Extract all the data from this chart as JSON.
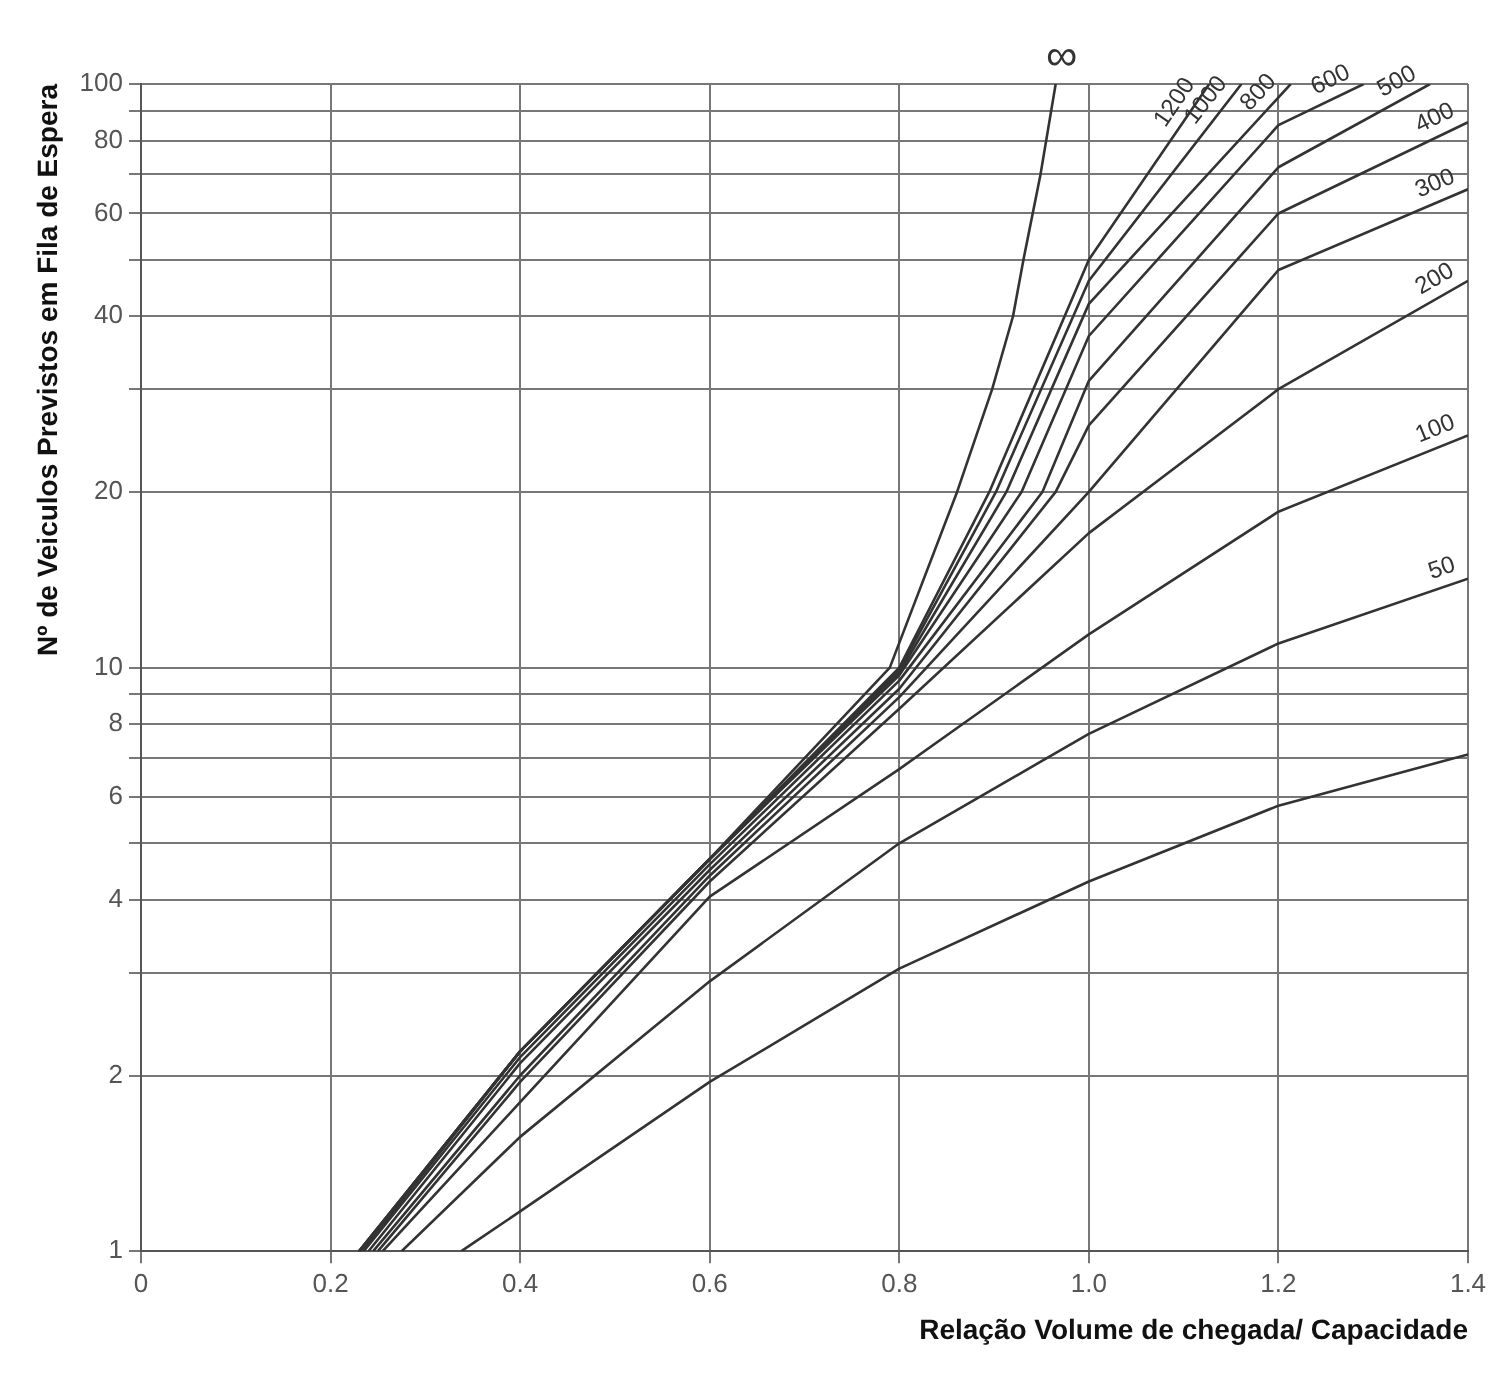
{
  "chart_data": {
    "type": "line",
    "xlabel": "Relação Volume de chegada/ Capacidade",
    "ylabel": "Nº de Veiculos Previstos em Fila de Espera",
    "log": "y",
    "grid": true,
    "legend": false,
    "marker": "none",
    "line_style": "solid",
    "xlim": [
      0,
      1.4
    ],
    "xticks": [
      0,
      0.2,
      0.4,
      0.6,
      0.8,
      {
        "value": 1,
        "label": "1.0"
      },
      1.2,
      1.4
    ],
    "ylim": [
      1,
      100
    ],
    "yticks": [
      1,
      2,
      {
        "value": 3,
        "label": null
      },
      4,
      {
        "value": 5,
        "label": null
      },
      6,
      {
        "value": 7,
        "label": null
      },
      8,
      {
        "value": 9,
        "label": null
      },
      10,
      20,
      {
        "value": 30,
        "label": null
      },
      40,
      {
        "value": 50,
        "label": null
      },
      60,
      {
        "value": 70,
        "label": null
      },
      80,
      {
        "value": 90,
        "label": null
      },
      100
    ],
    "series": [
      {
        "name": "∞",
        "color": "#333333",
        "x": [
          0.23,
          0.4,
          0.6,
          0.79,
          0.861,
          0.898,
          0.92,
          0.931,
          0.949,
          0.965
        ],
        "values": [
          1,
          2.2,
          4.7,
          10,
          20,
          30,
          40,
          50,
          70,
          100
        ]
      },
      {
        "name": "1200",
        "color": "#333333",
        "x": [
          0.23,
          0.4,
          0.6,
          0.8,
          0.895,
          1.0,
          1.127
        ],
        "values": [
          1,
          2.2,
          4.7,
          10,
          20,
          50,
          100
        ]
      },
      {
        "name": "1000",
        "color": "#333333",
        "x": [
          0.23,
          0.4,
          0.6,
          0.8,
          0.902,
          1.0,
          1.161
        ],
        "values": [
          1,
          2.2,
          4.7,
          9.9,
          20,
          46,
          100
        ]
      },
      {
        "name": "800",
        "color": "#333333",
        "x": [
          0.232,
          0.4,
          0.6,
          0.8,
          0.913,
          1.0,
          1.213
        ],
        "values": [
          1,
          2.2,
          4.7,
          9.8,
          20,
          42,
          100
        ]
      },
      {
        "name": "600",
        "color": "#333333",
        "x": [
          0.233,
          0.4,
          0.6,
          0.8,
          0.929,
          1.0,
          1.2,
          1.29
        ],
        "values": [
          1,
          2.2,
          4.7,
          9.7,
          20,
          37,
          85,
          100
        ]
      },
      {
        "name": "500",
        "color": "#333333",
        "x": [
          0.235,
          0.4,
          0.6,
          0.8,
          0.951,
          1.0,
          1.2,
          1.36
        ],
        "values": [
          1,
          2.15,
          4.6,
          9.5,
          20,
          31,
          72,
          100
        ]
      },
      {
        "name": "400",
        "color": "#333333",
        "x": [
          0.24,
          0.4,
          0.6,
          0.8,
          0.965,
          1.0,
          1.2,
          1.4
        ],
        "values": [
          1,
          2.1,
          4.5,
          9.2,
          20,
          26,
          60,
          86
        ]
      },
      {
        "name": "300",
        "color": "#333333",
        "x": [
          0.245,
          0.4,
          0.6,
          0.8,
          1.0,
          1.2,
          1.4
        ],
        "values": [
          1,
          2.0,
          4.4,
          8.9,
          20,
          48,
          66
        ]
      },
      {
        "name": "200",
        "color": "#333333",
        "x": [
          0.25,
          0.4,
          0.6,
          0.8,
          1.0,
          1.2,
          1.4
        ],
        "values": [
          1,
          1.95,
          4.3,
          8.5,
          17,
          30,
          46
        ]
      },
      {
        "name": "100",
        "color": "#333333",
        "x": [
          0.255,
          0.4,
          0.6,
          0.8,
          1.0,
          1.2,
          1.4
        ],
        "values": [
          1,
          1.8,
          4.05,
          6.7,
          11.4,
          18.5,
          25
        ]
      },
      {
        "name": "50",
        "color": "#333333",
        "x": [
          0.275,
          0.4,
          0.6,
          0.8,
          1.0,
          1.2,
          1.4
        ],
        "values": [
          1,
          1.57,
          2.9,
          5.0,
          7.7,
          11,
          14.2
        ]
      },
      {
        "color": "#333333",
        "x": [
          0.338,
          0.4,
          0.6,
          0.8,
          1.0,
          1.2,
          1.4
        ],
        "values": [
          1,
          1.17,
          1.95,
          3.05,
          4.3,
          5.8,
          7.1
        ]
      }
    ]
  }
}
